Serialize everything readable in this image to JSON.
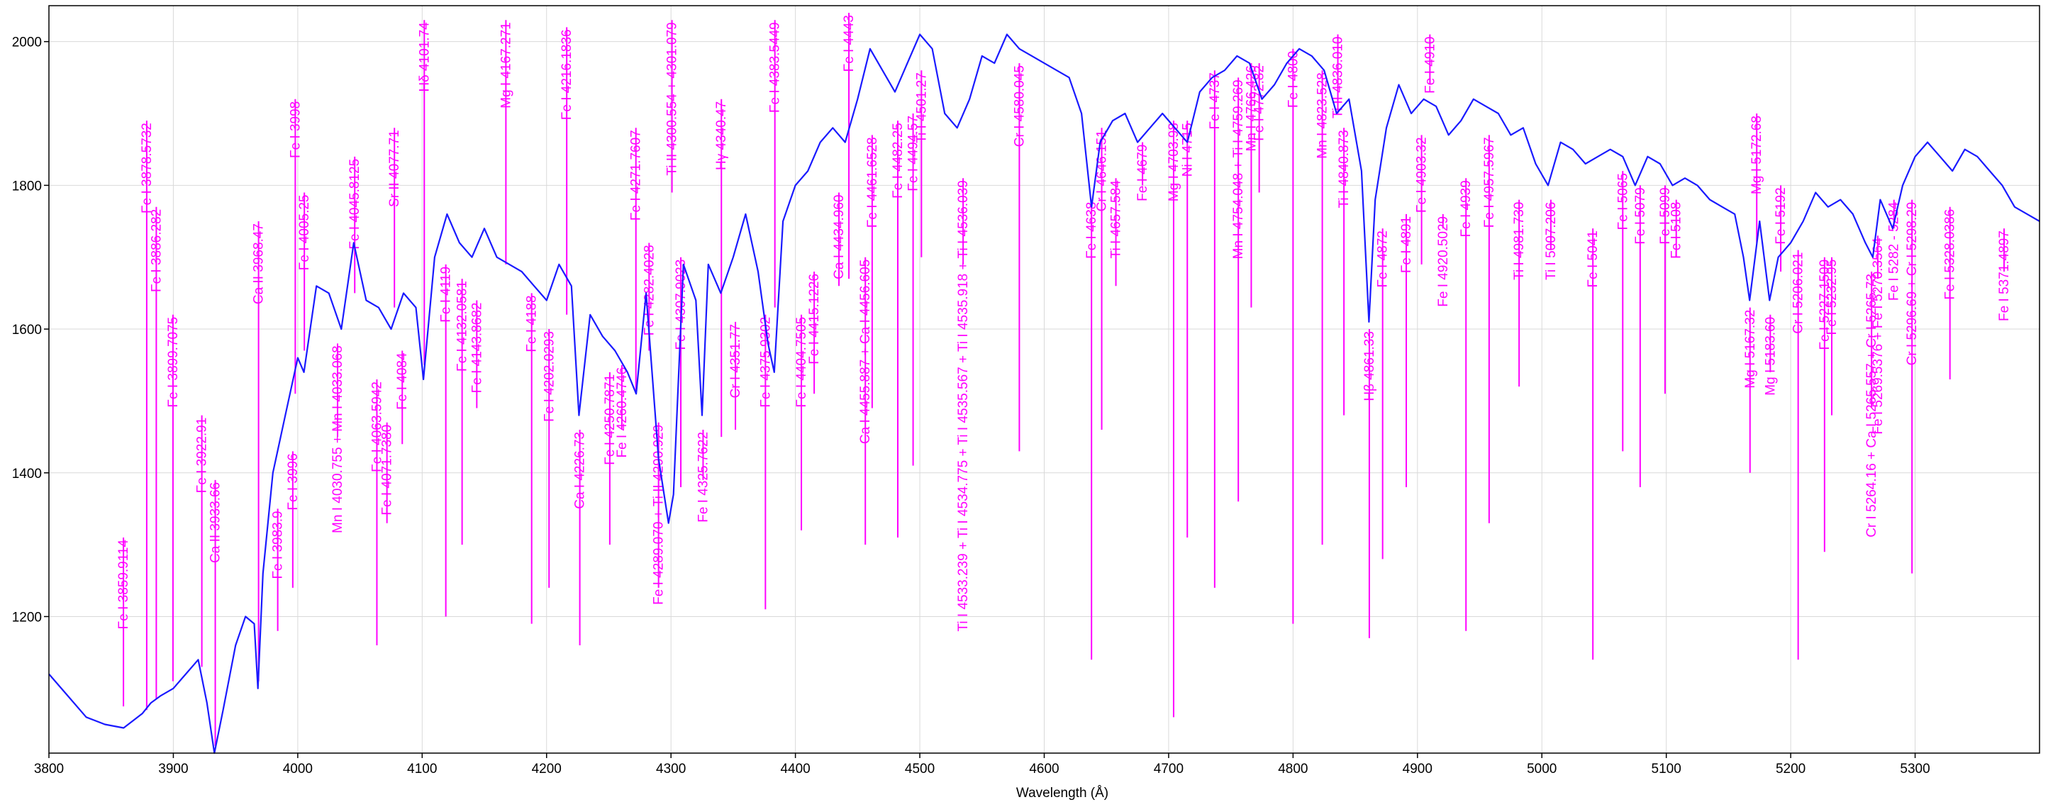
{
  "chart_data": {
    "type": "line",
    "xlabel": "Wavelength (Å)",
    "ylabel": "",
    "xlim": [
      3800,
      5400
    ],
    "ylim": [
      1010,
      2050
    ],
    "xticks": [
      3800,
      3900,
      4000,
      4100,
      4200,
      4300,
      4400,
      4500,
      4600,
      4700,
      4800,
      4900,
      5000,
      5100,
      5200,
      5300
    ],
    "yticks": [
      1200,
      1400,
      1600,
      1800,
      2000
    ],
    "grid": true,
    "colors": {
      "spectrum": "#1a1aff",
      "lines": "#ff00ff",
      "grid": "#d9d9d9",
      "axis": "#000000"
    },
    "spectrum": {
      "x": [
        3800,
        3815,
        3830,
        3845,
        3860,
        3875,
        3882,
        3890,
        3900,
        3910,
        3920,
        3927,
        3933,
        3940,
        3950,
        3958,
        3965,
        3968,
        3972,
        3980,
        3990,
        4000,
        4005,
        4015,
        4025,
        4035,
        4045,
        4055,
        4065,
        4075,
        4085,
        4095,
        4101,
        4110,
        4120,
        4130,
        4140,
        4150,
        4160,
        4170,
        4180,
        4190,
        4200,
        4210,
        4220,
        4226,
        4235,
        4245,
        4255,
        4265,
        4272,
        4280,
        4290,
        4298,
        4302,
        4310,
        4320,
        4325,
        4330,
        4340,
        4350,
        4360,
        4370,
        4378,
        4383,
        4390,
        4400,
        4410,
        4420,
        4430,
        4440,
        4450,
        4460,
        4470,
        4480,
        4490,
        4500,
        4510,
        4520,
        4530,
        4540,
        4550,
        4560,
        4570,
        4580,
        4590,
        4600,
        4610,
        4620,
        4630,
        4638,
        4645,
        4655,
        4665,
        4675,
        4685,
        4695,
        4705,
        4715,
        4725,
        4735,
        4745,
        4755,
        4765,
        4775,
        4785,
        4795,
        4805,
        4815,
        4825,
        4835,
        4845,
        4855,
        4861,
        4866,
        4875,
        4885,
        4895,
        4905,
        4915,
        4925,
        4935,
        4945,
        4955,
        4965,
        4975,
        4985,
        4995,
        5005,
        5015,
        5025,
        5035,
        5045,
        5055,
        5065,
        5075,
        5085,
        5095,
        5105,
        5115,
        5125,
        5135,
        5145,
        5155,
        5162,
        5167,
        5175,
        5183,
        5190,
        5200,
        5210,
        5220,
        5230,
        5240,
        5250,
        5260,
        5266,
        5272,
        5282,
        5290,
        5300,
        5310,
        5320,
        5330,
        5340,
        5350,
        5360,
        5370,
        5380,
        5390,
        5400
      ],
      "y": [
        1120,
        1090,
        1060,
        1050,
        1045,
        1065,
        1080,
        1090,
        1100,
        1120,
        1140,
        1080,
        1010,
        1070,
        1160,
        1200,
        1190,
        1100,
        1260,
        1400,
        1480,
        1560,
        1540,
        1660,
        1650,
        1600,
        1720,
        1640,
        1630,
        1600,
        1650,
        1630,
        1530,
        1700,
        1760,
        1720,
        1700,
        1740,
        1700,
        1690,
        1680,
        1660,
        1640,
        1690,
        1660,
        1480,
        1620,
        1590,
        1570,
        1540,
        1510,
        1650,
        1420,
        1330,
        1370,
        1690,
        1640,
        1480,
        1690,
        1650,
        1700,
        1760,
        1680,
        1580,
        1540,
        1750,
        1800,
        1820,
        1860,
        1880,
        1860,
        1920,
        1990,
        1960,
        1930,
        1970,
        2010,
        1990,
        1900,
        1880,
        1920,
        1980,
        1970,
        2010,
        1990,
        1980,
        1970,
        1960,
        1950,
        1900,
        1770,
        1860,
        1890,
        1900,
        1860,
        1880,
        1900,
        1880,
        1860,
        1930,
        1950,
        1960,
        1980,
        1970,
        1920,
        1940,
        1970,
        1990,
        1980,
        1960,
        1900,
        1920,
        1820,
        1610,
        1780,
        1880,
        1940,
        1900,
        1920,
        1910,
        1870,
        1890,
        1920,
        1910,
        1900,
        1870,
        1880,
        1830,
        1800,
        1860,
        1850,
        1830,
        1840,
        1850,
        1840,
        1800,
        1840,
        1830,
        1800,
        1810,
        1800,
        1780,
        1770,
        1760,
        1700,
        1640,
        1750,
        1640,
        1700,
        1720,
        1750,
        1790,
        1770,
        1780,
        1760,
        1720,
        1700,
        1780,
        1740,
        1800,
        1840,
        1860,
        1840,
        1820,
        1850,
        1840,
        1820,
        1800,
        1770,
        1760,
        1750
      ]
    },
    "lines": [
      {
        "label": "Fe I 3859.9114",
        "x": 3859.9,
        "y1": 1310,
        "y2": 1075
      },
      {
        "label": "Fe I 3878.5732",
        "x": 3878.6,
        "y1": 1890,
        "y2": 1070
      },
      {
        "label": "Fe I 3886.282",
        "x": 3886.3,
        "y1": 1770,
        "y2": 1085
      },
      {
        "label": "Fe I 3899.7075",
        "x": 3899.7,
        "y1": 1620,
        "y2": 1110
      },
      {
        "label": "Fe I 3922.91",
        "x": 3922.9,
        "y1": 1480,
        "y2": 1130
      },
      {
        "label": "Ca II 3933.66",
        "x": 3933.7,
        "y1": 1390,
        "y2": 1020
      },
      {
        "label": "Ca II 3968.47",
        "x": 3968.5,
        "y1": 1750,
        "y2": 1110
      },
      {
        "label": "Fe I 3983.9",
        "x": 3983.9,
        "y1": 1350,
        "y2": 1180
      },
      {
        "label": "Fe I 3996",
        "x": 3996.0,
        "y1": 1430,
        "y2": 1240
      },
      {
        "label": "Fe I 3998",
        "x": 3998.0,
        "y1": 1920,
        "y2": 1510
      },
      {
        "label": "Fe I 4005.25",
        "x": 4005.3,
        "y1": 1790,
        "y2": 1570
      },
      {
        "label": "Mn I 4030.755 + Mn I 4033.068",
        "x": 4032.0,
        "y1": 1580,
        "y2": 1450
      },
      {
        "label": "Fe I 4045.8125",
        "x": 4045.8,
        "y1": 1840,
        "y2": 1650
      },
      {
        "label": "Fe I 4063.5942",
        "x": 4063.6,
        "y1": 1530,
        "y2": 1160
      },
      {
        "label": "Fe I 4071.7380",
        "x": 4071.7,
        "y1": 1470,
        "y2": 1330
      },
      {
        "label": "Sr II 4077.71",
        "x": 4077.7,
        "y1": 1880,
        "y2": 1630
      },
      {
        "label": "Fe I 4084",
        "x": 4084.0,
        "y1": 1570,
        "y2": 1440
      },
      {
        "label": "Hδ 4101.74",
        "x": 4101.7,
        "y1": 2030,
        "y2": 1550
      },
      {
        "label": "Fe I 4119",
        "x": 4119.0,
        "y1": 1690,
        "y2": 1200
      },
      {
        "label": "Fe I 4132.0581",
        "x": 4132.1,
        "y1": 1670,
        "y2": 1300
      },
      {
        "label": "Fe I 4143.8682",
        "x": 4143.9,
        "y1": 1640,
        "y2": 1490
      },
      {
        "label": "Mg I 4167.271",
        "x": 4167.3,
        "y1": 2030,
        "y2": 1690
      },
      {
        "label": "Fe I 4188",
        "x": 4188.0,
        "y1": 1650,
        "y2": 1190
      },
      {
        "label": "Fe I 4202.0293",
        "x": 4202.0,
        "y1": 1600,
        "y2": 1240
      },
      {
        "label": "Fe I 4216.1836",
        "x": 4216.2,
        "y1": 2020,
        "y2": 1620
      },
      {
        "label": "Ca I 4226.73",
        "x": 4226.7,
        "y1": 1460,
        "y2": 1160
      },
      {
        "label": "Fe I 4250.7871",
        "x": 4250.8,
        "y1": 1540,
        "y2": 1300
      },
      {
        "label": "Fe I 4260.4746",
        "x": 4260.5,
        "y1": 1550,
        "y2": 1460
      },
      {
        "label": "Fe I 4271.7607",
        "x": 4271.8,
        "y1": 1880,
        "y2": 1510
      },
      {
        "label": "Fe I 4282.4028",
        "x": 4282.4,
        "y1": 1720,
        "y2": 1570
      },
      {
        "label": "Fe I 4289.070 + Ti II 4290.929",
        "x": 4290.0,
        "y1": 1470,
        "y2": 1240
      },
      {
        "label": "Ti II 4300.554 + 4301.079",
        "x": 4300.8,
        "y1": 2030,
        "y2": 1790
      },
      {
        "label": "Fe I 4307.9023",
        "x": 4307.9,
        "y1": 1700,
        "y2": 1380
      },
      {
        "label": "Fe I 4325.7622",
        "x": 4325.8,
        "y1": 1460,
        "y2": 1390
      },
      {
        "label": "Hγ 4340.47",
        "x": 4340.5,
        "y1": 1920,
        "y2": 1450
      },
      {
        "label": "Cr I 4351.77",
        "x": 4351.8,
        "y1": 1610,
        "y2": 1460
      },
      {
        "label": "Fe I 4375.9302",
        "x": 4375.9,
        "y1": 1620,
        "y2": 1210
      },
      {
        "label": "Fe I 4383.5449",
        "x": 4383.5,
        "y1": 2030,
        "y2": 1630
      },
      {
        "label": "Fe I 4404.7505",
        "x": 4404.8,
        "y1": 1620,
        "y2": 1320
      },
      {
        "label": "Fe I 4415.1226",
        "x": 4415.1,
        "y1": 1680,
        "y2": 1510
      },
      {
        "label": "Fe I 4443",
        "x": 4443.0,
        "y1": 2040,
        "y2": 1670
      },
      {
        "label": "Ca I 4434.960",
        "x": 4435.0,
        "y1": 1790,
        "y2": 1660
      },
      {
        "label": "Ca I 4455.887 + Ca I 4456.605",
        "x": 4456.2,
        "y1": 1700,
        "y2": 1300
      },
      {
        "label": "Fe I 4461.6528",
        "x": 4461.7,
        "y1": 1870,
        "y2": 1490
      },
      {
        "label": "Fe I 4482.25",
        "x": 4482.3,
        "y1": 1890,
        "y2": 1310
      },
      {
        "label": "Fe I 4494.57",
        "x": 4494.6,
        "y1": 1900,
        "y2": 1410
      },
      {
        "label": "Ti I 4501.27",
        "x": 4501.3,
        "y1": 1960,
        "y2": 1700
      },
      {
        "label": "Ti I 4533.239 + Ti I 4534.775 + Ti I 4535.567 + Ti I 4535.918 + Ti I 4536.039",
        "x": 4534.8,
        "y1": 1810,
        "y2": 1690
      },
      {
        "label": "Cr I 4580.045",
        "x": 4580.0,
        "y1": 1970,
        "y2": 1430
      },
      {
        "label": "Fe I 4638",
        "x": 4638.0,
        "y1": 1780,
        "y2": 1140
      },
      {
        "label": "Cr I 4646.151",
        "x": 4646.2,
        "y1": 1880,
        "y2": 1460
      },
      {
        "label": "Ti I 4657.584",
        "x": 4657.6,
        "y1": 1810,
        "y2": 1660
      },
      {
        "label": "Fe I 4679",
        "x": 4679.0,
        "y1": 1860,
        "y2": 1800
      },
      {
        "label": "Mg I 4703.98",
        "x": 4704.0,
        "y1": 1890,
        "y2": 1060
      },
      {
        "label": "Ni I 4715",
        "x": 4715.0,
        "y1": 1890,
        "y2": 1310
      },
      {
        "label": "Fe I 4737",
        "x": 4737.0,
        "y1": 1960,
        "y2": 1240
      },
      {
        "label": "Mn I 4754.048 + Ti I 4759.269",
        "x": 4756.0,
        "y1": 1950,
        "y2": 1360
      },
      {
        "label": "Mn I 4766.426",
        "x": 4766.4,
        "y1": 1970,
        "y2": 1630
      },
      {
        "label": "Fe I 4772.82",
        "x": 4772.8,
        "y1": 1970,
        "y2": 1790
      },
      {
        "label": "Fe I 4800",
        "x": 4800.0,
        "y1": 1990,
        "y2": 1190
      },
      {
        "label": "Mn I 4823.528",
        "x": 4823.5,
        "y1": 1960,
        "y2": 1300
      },
      {
        "label": "Ti I 4840.873",
        "x": 4840.9,
        "y1": 1880,
        "y2": 1480
      },
      {
        "label": "Ti II 4836.010",
        "x": 4836.0,
        "y1": 2010,
        "y2": 1900
      },
      {
        "label": "Hβ 4861.33",
        "x": 4861.3,
        "y1": 1600,
        "y2": 1170
      },
      {
        "label": "Fe I 4872",
        "x": 4872.0,
        "y1": 1740,
        "y2": 1280
      },
      {
        "label": "Fe I 4891",
        "x": 4891.0,
        "y1": 1760,
        "y2": 1380
      },
      {
        "label": "Fe I 4903.32",
        "x": 4903.3,
        "y1": 1870,
        "y2": 1690
      },
      {
        "label": "Fe I 4910",
        "x": 4910.0,
        "y1": 2010,
        "y2": 1940
      },
      {
        "label": "Fe I 4920.5029",
        "x": 4920.5,
        "y1": 1760,
        "y2": 1740
      },
      {
        "label": "Fe I 4939",
        "x": 4939.0,
        "y1": 1810,
        "y2": 1180
      },
      {
        "label": "Fe I 4957.5967",
        "x": 4957.6,
        "y1": 1870,
        "y2": 1330
      },
      {
        "label": "Ti I 4981.730",
        "x": 4981.7,
        "y1": 1780,
        "y2": 1520
      },
      {
        "label": "Ti I 5007.206",
        "x": 5007.2,
        "y1": 1780,
        "y2": 1710
      },
      {
        "label": "Fe I 5041",
        "x": 5041.0,
        "y1": 1740,
        "y2": 1140
      },
      {
        "label": "Fe I 5065",
        "x": 5065.0,
        "y1": 1820,
        "y2": 1430
      },
      {
        "label": "Fe I 5079",
        "x": 5079.0,
        "y1": 1800,
        "y2": 1380
      },
      {
        "label": "Fe I 5099",
        "x": 5099.0,
        "y1": 1800,
        "y2": 1510
      },
      {
        "label": "Fe I 5108",
        "x": 5108.0,
        "y1": 1780,
        "y2": 1700
      },
      {
        "label": "Mg I 5167.32",
        "x": 5167.3,
        "y1": 1630,
        "y2": 1400
      },
      {
        "label": "Mg I 5172.68",
        "x": 5172.7,
        "y1": 1900,
        "y2": 1720
      },
      {
        "label": "Mg I 5183.60",
        "x": 5183.6,
        "y1": 1620,
        "y2": 1540
      },
      {
        "label": "Fe I 5192",
        "x": 5192.0,
        "y1": 1800,
        "y2": 1680
      },
      {
        "label": "Cr I 5206.021",
        "x": 5206.0,
        "y1": 1710,
        "y2": 1140
      },
      {
        "label": "Fe I 5227.1509",
        "x": 5227.2,
        "y1": 1700,
        "y2": 1290
      },
      {
        "label": "Fe I 5232.95",
        "x": 5233.0,
        "y1": 1700,
        "y2": 1480
      },
      {
        "label": "Cr I 5264.16 + Ca I 5265.557 + Cr I 5265.73",
        "x": 5265.0,
        "y1": 1680,
        "y2": 1490
      },
      {
        "label": "Fe I 5269.5376 + Fe I 5270.3564",
        "x": 5270.0,
        "y1": 1730,
        "y2": 1670
      },
      {
        "label": "Fe I 5282 - 5284",
        "x": 5283.0,
        "y1": 1780,
        "y2": 1740
      },
      {
        "label": "Cr I 5296.69 + Cr I 5298.29",
        "x": 5297.5,
        "y1": 1780,
        "y2": 1260
      },
      {
        "label": "Fe I 5328.0386",
        "x": 5328.0,
        "y1": 1770,
        "y2": 1530
      },
      {
        "label": "Fe I 5371.4897",
        "x": 5371.5,
        "y1": 1740,
        "y2": 1680
      }
    ]
  }
}
